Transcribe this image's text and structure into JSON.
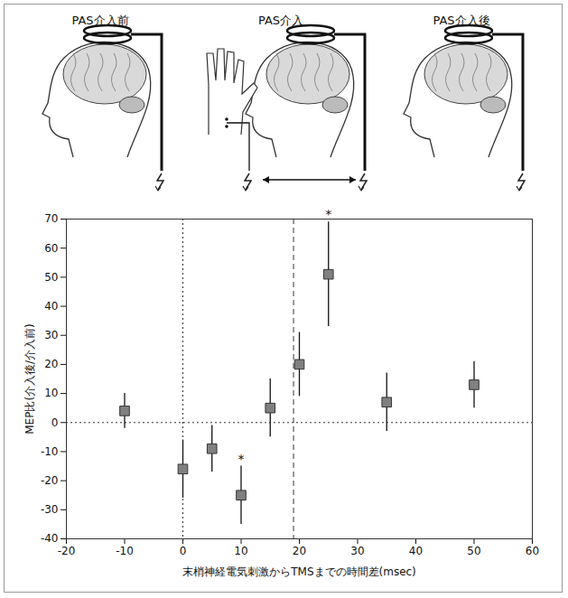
{
  "diagram": {
    "panels": [
      "PAS介入前",
      "PAS介入",
      "PAS介入後"
    ]
  },
  "chart_data": {
    "type": "scatter",
    "x_label": "末梢神経電気刺激からTMSまでの時間差(msec)",
    "y_label": "MEP比(介入後/介入前)",
    "x": [
      -10,
      0,
      5,
      10,
      15,
      20,
      25,
      35,
      50
    ],
    "values": [
      4,
      -16,
      -9,
      -25,
      5,
      20,
      51,
      7,
      13
    ],
    "errors": [
      6,
      10,
      8,
      10,
      10,
      11,
      18,
      10,
      8
    ],
    "annotations": [
      {
        "text": "*",
        "x": 10
      },
      {
        "text": "*",
        "x": 25
      }
    ],
    "reference_lines": [
      {
        "axis": "x",
        "value": 0,
        "line_style": "dotted"
      },
      {
        "axis": "x",
        "value": 19,
        "line_style": "dashed"
      },
      {
        "axis": "y",
        "value": 0,
        "line_style": "dotted"
      }
    ],
    "marker": "square",
    "color": "#808080",
    "xlim": [
      -20,
      60
    ],
    "xticks": [
      -20,
      -10,
      0,
      10,
      20,
      30,
      40,
      50,
      60
    ],
    "ylim": [
      -40,
      70
    ],
    "yticks": [
      -40,
      -30,
      -20,
      -10,
      0,
      10,
      20,
      30,
      40,
      50,
      60,
      70
    ],
    "grid": false
  }
}
